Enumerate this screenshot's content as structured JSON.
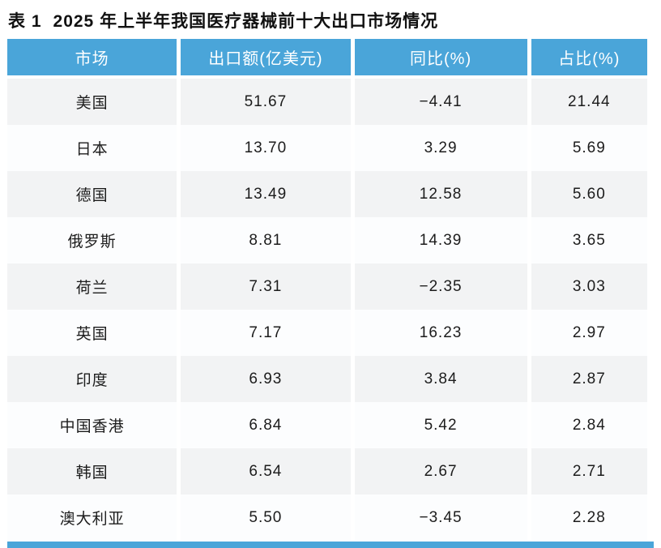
{
  "table": {
    "label": "表 1",
    "title": "2025 年上半年我国医疗器械前十大出口市场情况",
    "columns": [
      "市场",
      "出口额(亿美元)",
      "同比(%)",
      "占比(%)"
    ],
    "rows": [
      [
        "美国",
        "51.67",
        "−4.41",
        "21.44"
      ],
      [
        "日本",
        "13.70",
        "3.29",
        "5.69"
      ],
      [
        "德国",
        "13.49",
        "12.58",
        "5.60"
      ],
      [
        "俄罗斯",
        "8.81",
        "14.39",
        "3.65"
      ],
      [
        "荷兰",
        "7.31",
        "−2.35",
        "3.03"
      ],
      [
        "英国",
        "7.17",
        "16.23",
        "2.97"
      ],
      [
        "印度",
        "6.93",
        "3.84",
        "2.87"
      ],
      [
        "中国香港",
        "6.84",
        "5.42",
        "2.84"
      ],
      [
        "韩国",
        "6.54",
        "2.67",
        "2.71"
      ],
      [
        "澳大利亚",
        "5.50",
        "−3.45",
        "2.28"
      ]
    ],
    "column_widths_pct": [
      27,
      27,
      27.5,
      18.5
    ]
  },
  "colors": {
    "header_bg": "#4aa5d9",
    "header_text": "#ffffff",
    "row_alt_bg": "#f2f3f4",
    "row_bg": "#fcfdfe",
    "body_text": "#1c1c1c",
    "footer_bar": "#4aa5d9"
  },
  "chart_data": {
    "type": "table",
    "title": "表 1 2025 年上半年我国医疗器械前十大出口市场情况",
    "columns": [
      "市场",
      "出口额(亿美元)",
      "同比(%)",
      "占比(%)"
    ],
    "rows": [
      {
        "市场": "美国",
        "出口额(亿美元)": 51.67,
        "同比(%)": -4.41,
        "占比(%)": 21.44
      },
      {
        "市场": "日本",
        "出口额(亿美元)": 13.7,
        "同比(%)": 3.29,
        "占比(%)": 5.69
      },
      {
        "市场": "德国",
        "出口额(亿美元)": 13.49,
        "同比(%)": 12.58,
        "占比(%)": 5.6
      },
      {
        "市场": "俄罗斯",
        "出口额(亿美元)": 8.81,
        "同比(%)": 14.39,
        "占比(%)": 3.65
      },
      {
        "市场": "荷兰",
        "出口额(亿美元)": 7.31,
        "同比(%)": -2.35,
        "占比(%)": 3.03
      },
      {
        "市场": "英国",
        "出口额(亿美元)": 7.17,
        "同比(%)": 16.23,
        "占比(%)": 2.97
      },
      {
        "市场": "印度",
        "出口额(亿美元)": 6.93,
        "同比(%)": 3.84,
        "占比(%)": 2.87
      },
      {
        "市场": "中国香港",
        "出口额(亿美元)": 6.84,
        "同比(%)": 5.42,
        "占比(%)": 2.84
      },
      {
        "市场": "韩国",
        "出口额(亿美元)": 6.54,
        "同比(%)": 2.67,
        "占比(%)": 2.71
      },
      {
        "市场": "澳大利亚",
        "出口额(亿美元)": 5.5,
        "同比(%)": -3.45,
        "占比(%)": 2.28
      }
    ]
  }
}
